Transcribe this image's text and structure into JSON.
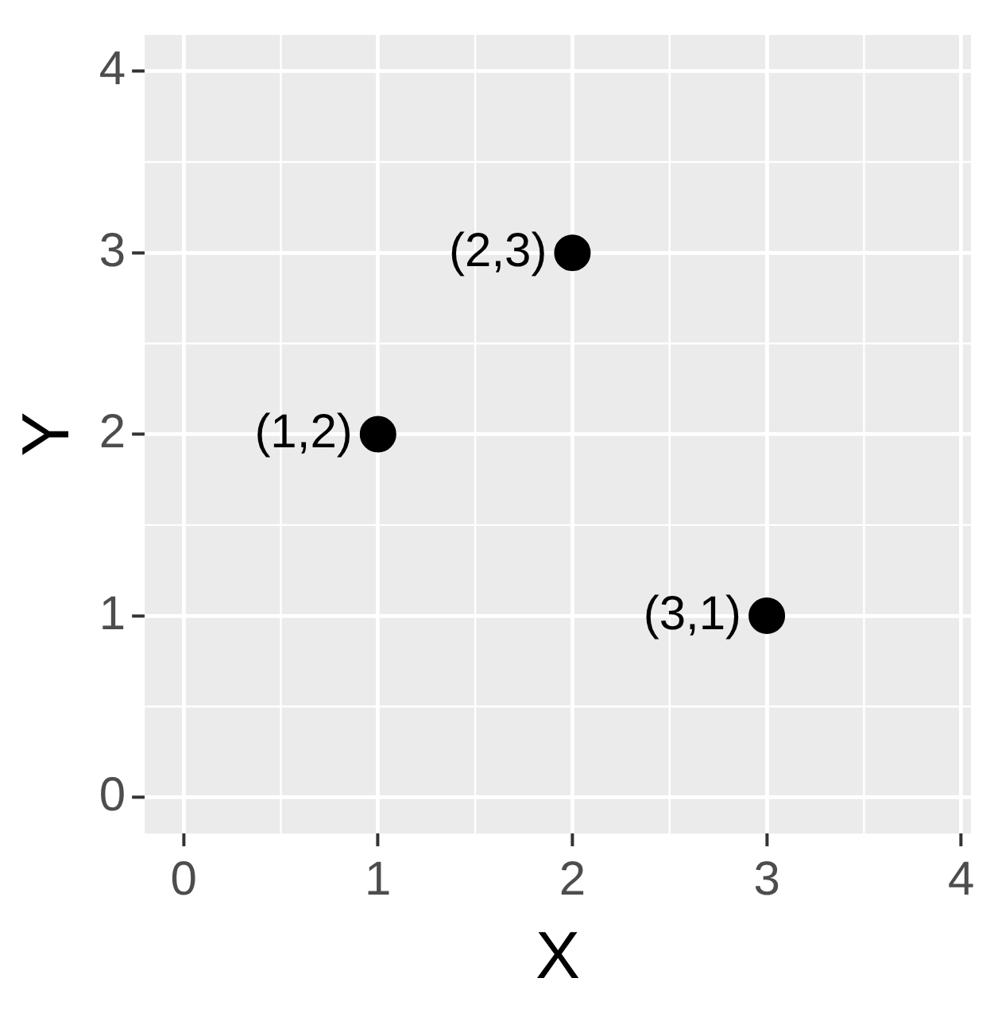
{
  "chart_data": {
    "type": "scatter",
    "xlabel": "X",
    "ylabel": "Y",
    "x": [
      1,
      2,
      3
    ],
    "values": [
      2,
      3,
      1
    ],
    "color": "#000000",
    "marker": "circle",
    "xlim": [
      -0.2,
      4.05
    ],
    "ylim": [
      -0.2,
      4.2
    ],
    "xticks": [
      0,
      1,
      2,
      3,
      4
    ],
    "yticks": [
      0,
      1,
      2,
      3,
      4
    ],
    "grid": true,
    "legend": false,
    "annotations": [
      {
        "text": "(1,2)",
        "x": 1,
        "y": 2
      },
      {
        "text": "(2,3)",
        "x": 2,
        "y": 3
      },
      {
        "text": "(3,1)",
        "x": 3,
        "y": 1
      }
    ]
  }
}
